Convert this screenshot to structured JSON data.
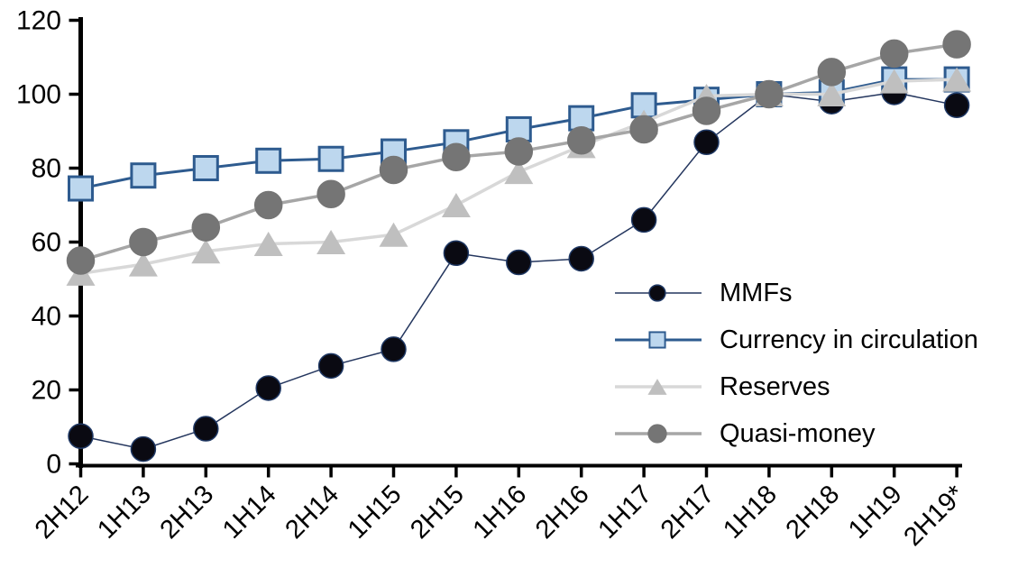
{
  "chart_data": {
    "type": "line",
    "title": "",
    "xlabel": "",
    "ylabel": "",
    "grid": "off",
    "legend_position": "inside-right",
    "axis_color": "#000000",
    "background_color": "#ffffff",
    "ylim": [
      0,
      120
    ],
    "yticks": [
      0,
      20,
      40,
      60,
      80,
      100,
      120
    ],
    "categories": [
      "2H12",
      "1H13",
      "2H13",
      "1H14",
      "2H14",
      "1H15",
      "2H15",
      "1H16",
      "2H16",
      "1H17",
      "2H17",
      "1H18",
      "2H18",
      "1H19",
      "2H19*"
    ],
    "series": [
      {
        "name": "MMFs",
        "marker": "circle",
        "marker_color": "#0a0a12",
        "marker_edge_color": "#1F3864",
        "line_color": "#24365E",
        "line_width": 1.5,
        "marker_radius": 13.5,
        "values": [
          7.5,
          4,
          9.5,
          20.5,
          26.5,
          31,
          57,
          54.5,
          55.5,
          66,
          87,
          100,
          98,
          100.5,
          97
        ]
      },
      {
        "name": "Currency in circulation",
        "marker": "square",
        "marker_color": "#BDD7EE",
        "marker_edge_color": "#2E5B8F",
        "line_color": "#2E5B8F",
        "line_width": 3,
        "marker_size": 26,
        "values": [
          74.5,
          78,
          80,
          82,
          82.5,
          84.5,
          87,
          90.5,
          93.5,
          97,
          98.5,
          100,
          100.5,
          104,
          104
        ]
      },
      {
        "name": "Reserves",
        "marker": "triangle",
        "marker_color": "#BFBFBF",
        "marker_edge_color": "#BFBFBF",
        "line_color": "#D8D8D8",
        "line_width": 3.5,
        "marker_size": 30,
        "values": [
          51.5,
          54,
          57.5,
          59.5,
          60,
          62,
          70,
          79,
          86,
          92.5,
          99.5,
          100,
          100,
          103.5,
          104
        ]
      },
      {
        "name": "Quasi-money",
        "marker": "circle",
        "marker_color": "#757575",
        "marker_edge_color": "#757575",
        "line_color": "#A6A6A6",
        "line_width": 3.5,
        "marker_radius": 15,
        "values": [
          55,
          60,
          64,
          70,
          73,
          79.5,
          83,
          84.5,
          87.5,
          90.5,
          95.5,
          100,
          106,
          111,
          113.5
        ]
      }
    ]
  }
}
